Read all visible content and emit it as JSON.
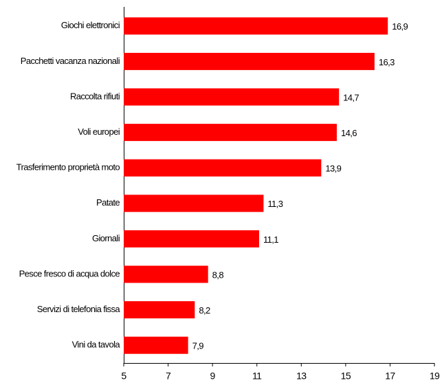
{
  "chart_data": {
    "type": "hbar",
    "categories": [
      "Giochi elettronici",
      "Pacchetti vacanza nazionali",
      "Raccolta rifiuti",
      "Voli europei",
      "Trasferimento proprietà moto",
      "Patate",
      "Giornali",
      "Pesce fresco di acqua dolce",
      "Servizi di telefonia fissa",
      "Vini da tavola"
    ],
    "values": [
      16.9,
      16.3,
      14.7,
      14.6,
      13.9,
      11.3,
      11.1,
      8.8,
      8.2,
      7.9
    ],
    "value_labels": [
      "16,9",
      "16,3",
      "14,7",
      "14,6",
      "13,9",
      "11,3",
      "11,1",
      "8,8",
      "8,2",
      "7,9"
    ],
    "color": "#ff0000",
    "xlim": [
      5,
      19
    ],
    "xticks": [
      5,
      7,
      9,
      11,
      13,
      15,
      17,
      19
    ]
  }
}
